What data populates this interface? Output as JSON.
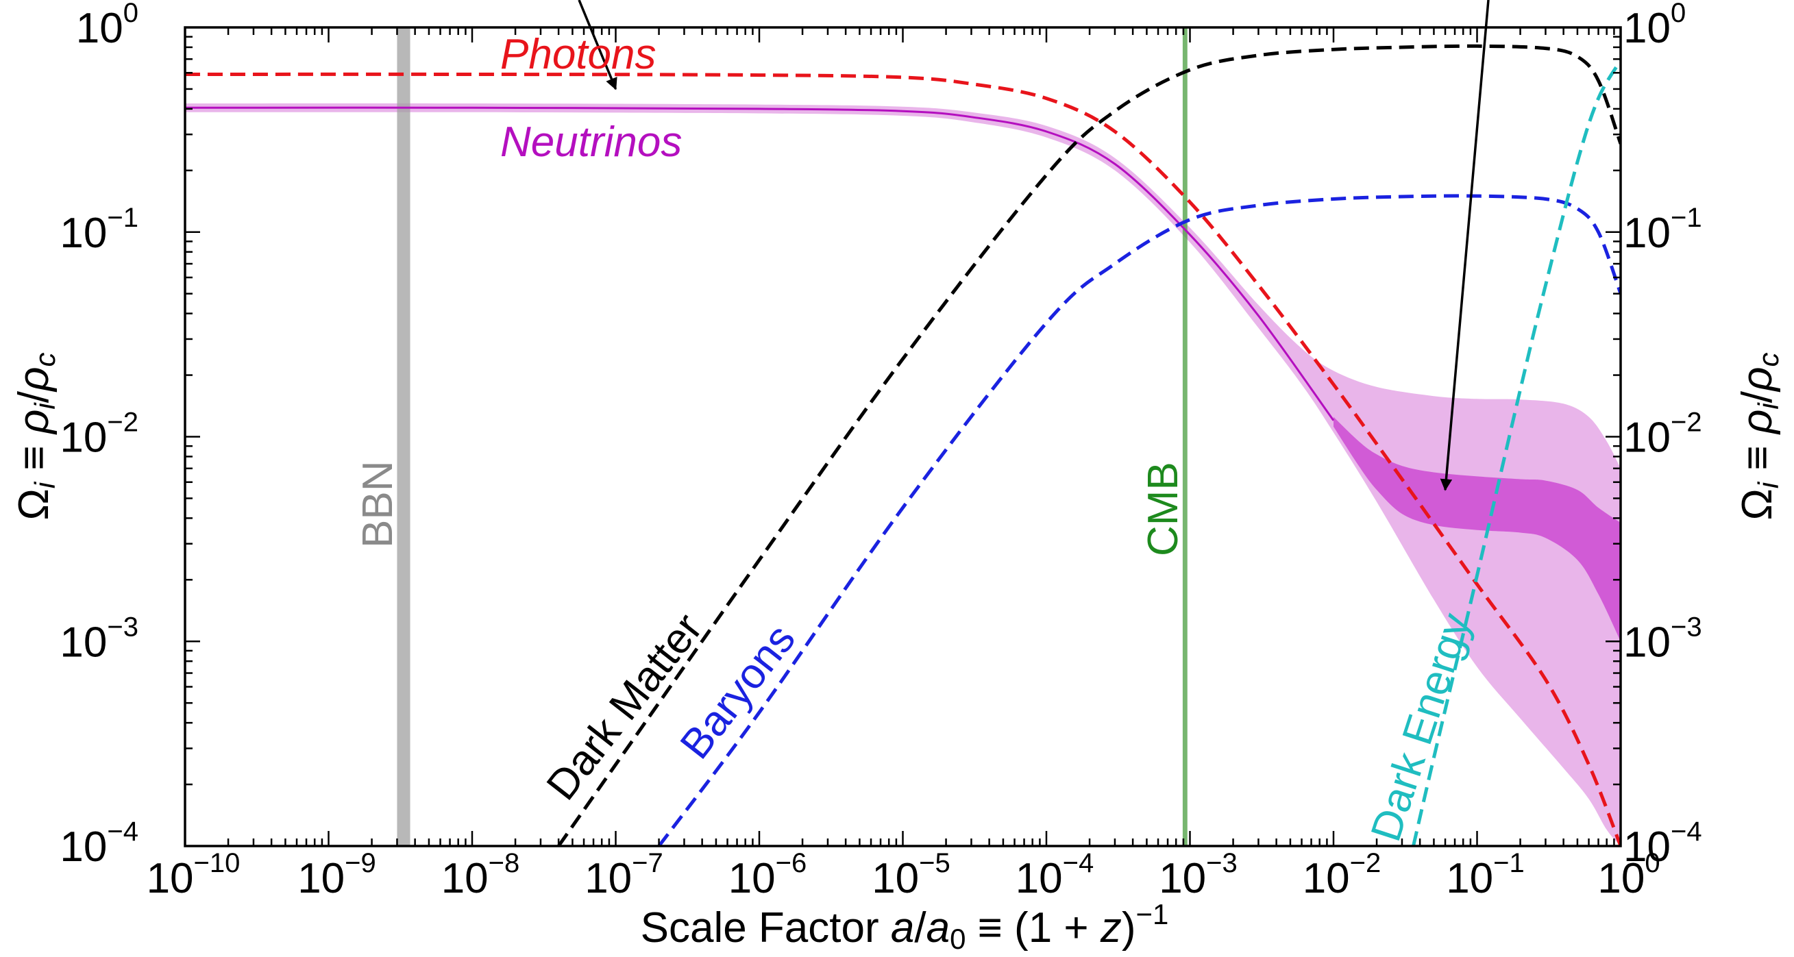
{
  "chart_data": {
    "type": "line",
    "xlabel": "Scale Factor a/a₀ ≡ (1 + z)⁻¹",
    "ylabel": "Ωᵢ ≡ ρᵢ/ρ꜀",
    "ylabel_right": "Ωᵢ ≡ ρᵢ/ρ꜀",
    "xscale": "log",
    "yscale": "log",
    "xlim": [
      1e-10,
      1
    ],
    "ylim": [
      0.0001,
      1
    ],
    "grid": false,
    "x_ticks": [
      {
        "base": "10",
        "exp": "−10",
        "value": 1e-10
      },
      {
        "base": "10",
        "exp": "−9",
        "value": 1e-09
      },
      {
        "base": "10",
        "exp": "−8",
        "value": 1e-08
      },
      {
        "base": "10",
        "exp": "−7",
        "value": 1e-07
      },
      {
        "base": "10",
        "exp": "−6",
        "value": 1e-06
      },
      {
        "base": "10",
        "exp": "−5",
        "value": 1e-05
      },
      {
        "base": "10",
        "exp": "−4",
        "value": 0.0001
      },
      {
        "base": "10",
        "exp": "−3",
        "value": 0.001
      },
      {
        "base": "10",
        "exp": "−2",
        "value": 0.01
      },
      {
        "base": "10",
        "exp": "−1",
        "value": 0.1
      },
      {
        "base": "10",
        "exp": "0",
        "value": 1
      }
    ],
    "y_ticks": [
      {
        "base": "10",
        "exp": "0",
        "value": 1
      },
      {
        "base": "10",
        "exp": "−1",
        "value": 0.1
      },
      {
        "base": "10",
        "exp": "−2",
        "value": 0.01
      },
      {
        "base": "10",
        "exp": "−3",
        "value": 0.001
      },
      {
        "base": "10",
        "exp": "−4",
        "value": 0.0001
      }
    ],
    "series": [
      {
        "name": "Photons",
        "color": "#e8141b",
        "style": "dashed",
        "x": [
          1e-10,
          1e-08,
          1e-06,
          1e-05,
          3e-05,
          0.0001,
          0.0003,
          0.001,
          0.003,
          0.01,
          0.03,
          0.1,
          0.3,
          0.6,
          1
        ],
        "y": [
          0.59,
          0.59,
          0.585,
          0.57,
          0.53,
          0.45,
          0.31,
          0.14,
          0.055,
          0.018,
          0.0062,
          0.0019,
          0.00065,
          0.00025,
          0.0001
        ]
      },
      {
        "name": "Neutrinos",
        "color": "#b40fbf",
        "style": "solid",
        "x": [
          1e-10,
          1e-08,
          1e-06,
          1e-05,
          3e-05,
          0.0001,
          0.0003,
          0.001,
          0.003,
          0.01
        ],
        "y": [
          0.405,
          0.405,
          0.4,
          0.39,
          0.365,
          0.31,
          0.215,
          0.097,
          0.039,
          0.012
        ]
      },
      {
        "name": "Dark Matter",
        "color": "#000000",
        "style": "dashed",
        "x": [
          4e-08,
          1e-07,
          1e-06,
          1e-05,
          0.0001,
          0.0003,
          0.001,
          0.003,
          0.01,
          0.03,
          0.1,
          0.3,
          0.5,
          0.7,
          1
        ],
        "y": [
          0.0001,
          0.00025,
          0.0025,
          0.024,
          0.19,
          0.39,
          0.62,
          0.73,
          0.78,
          0.8,
          0.81,
          0.79,
          0.72,
          0.55,
          0.27
        ]
      },
      {
        "name": "Baryons",
        "color": "#1a22e0",
        "style": "dashed",
        "x": [
          2e-07,
          1e-06,
          1e-05,
          0.0001,
          0.0003,
          0.001,
          0.003,
          0.01,
          0.03,
          0.1,
          0.3,
          0.5,
          0.7,
          1
        ],
        "y": [
          0.0001,
          0.00045,
          0.0045,
          0.036,
          0.07,
          0.115,
          0.135,
          0.145,
          0.149,
          0.15,
          0.145,
          0.13,
          0.1,
          0.05
        ]
      },
      {
        "name": "Dark Energy",
        "color": "#1fbdc0",
        "style": "dashed",
        "x": [
          0.036,
          0.05,
          0.1,
          0.2,
          0.3,
          0.5,
          0.7,
          1
        ],
        "y": [
          0.0001,
          0.00027,
          0.0021,
          0.017,
          0.055,
          0.22,
          0.45,
          0.69
        ]
      }
    ],
    "bands": [
      {
        "name": "neutrino-outer-band",
        "color": "#e9b5ea",
        "x": [
          1e-10,
          1e-08,
          1e-06,
          1e-05,
          3e-05,
          0.0001,
          0.0003,
          0.001,
          0.003,
          0.006,
          0.01,
          0.02,
          0.05,
          0.1,
          0.2,
          0.4,
          0.6,
          0.8,
          1
        ],
        "lower": [
          0.385,
          0.385,
          0.38,
          0.37,
          0.345,
          0.29,
          0.2,
          0.089,
          0.034,
          0.018,
          0.0105,
          0.0048,
          0.0016,
          0.00075,
          0.00042,
          0.00024,
          0.00017,
          0.00012,
          0.0001
        ],
        "upper": [
          0.425,
          0.425,
          0.42,
          0.41,
          0.385,
          0.33,
          0.23,
          0.105,
          0.044,
          0.027,
          0.021,
          0.0175,
          0.0158,
          0.0153,
          0.0152,
          0.0145,
          0.0125,
          0.0095,
          0.007
        ]
      },
      {
        "name": "neutrino-inner-band",
        "color": "#d15bd6",
        "x": [
          0.01,
          0.015,
          0.02,
          0.03,
          0.05,
          0.1,
          0.2,
          0.3,
          0.5,
          0.7,
          1
        ],
        "lower": [
          0.0112,
          0.0072,
          0.0055,
          0.0042,
          0.0037,
          0.0035,
          0.0034,
          0.0032,
          0.0025,
          0.0017,
          0.001
        ],
        "upper": [
          0.0125,
          0.0095,
          0.0082,
          0.0072,
          0.0067,
          0.0064,
          0.0062,
          0.0061,
          0.0055,
          0.0045,
          0.0038
        ]
      }
    ],
    "vertical_bands": [
      {
        "label": "BBN",
        "x_min": 3e-09,
        "x_max": 3.7e-09,
        "color": "#a0a0a0",
        "label_color": "#8a8a8a"
      },
      {
        "label": "CMB",
        "x_min": 0.00089,
        "x_max": 0.00096,
        "color": "#4a9e3f",
        "label_color": "#1d8a1d"
      }
    ],
    "annotations": [
      {
        "type": "arrow",
        "target_x": 1e-07,
        "target_y": 0.5
      },
      {
        "type": "arrow",
        "target_x": 0.06,
        "target_y": 0.0055
      }
    ]
  }
}
